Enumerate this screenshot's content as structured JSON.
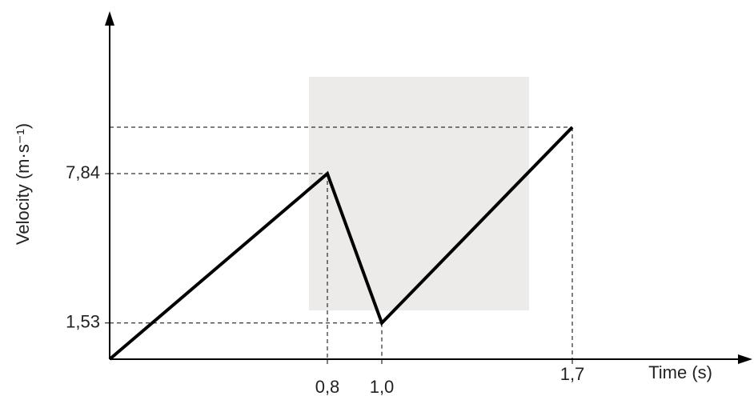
{
  "chart_data": {
    "type": "line",
    "xlabel": "Time (s)",
    "ylabel": "Velocity (m·s⁻¹)",
    "x": [
      0,
      0.8,
      1.0,
      1.7
    ],
    "series": [
      {
        "color": "#000000",
        "values": [
          0,
          7.84,
          1.53,
          9.8
        ]
      }
    ],
    "xlim": [
      0,
      2.35
    ],
    "ylim": [
      0,
      14.5
    ],
    "xticks": [
      {
        "value": 0.8,
        "label": "0,8"
      },
      {
        "value": 1.0,
        "label": "1,0"
      },
      {
        "value": 1.7,
        "label": "1,7"
      }
    ],
    "yticks": [
      {
        "value": 1.53,
        "label": "1,53"
      },
      {
        "value": 7.84,
        "label": "7,84"
      }
    ],
    "grid": false
  }
}
